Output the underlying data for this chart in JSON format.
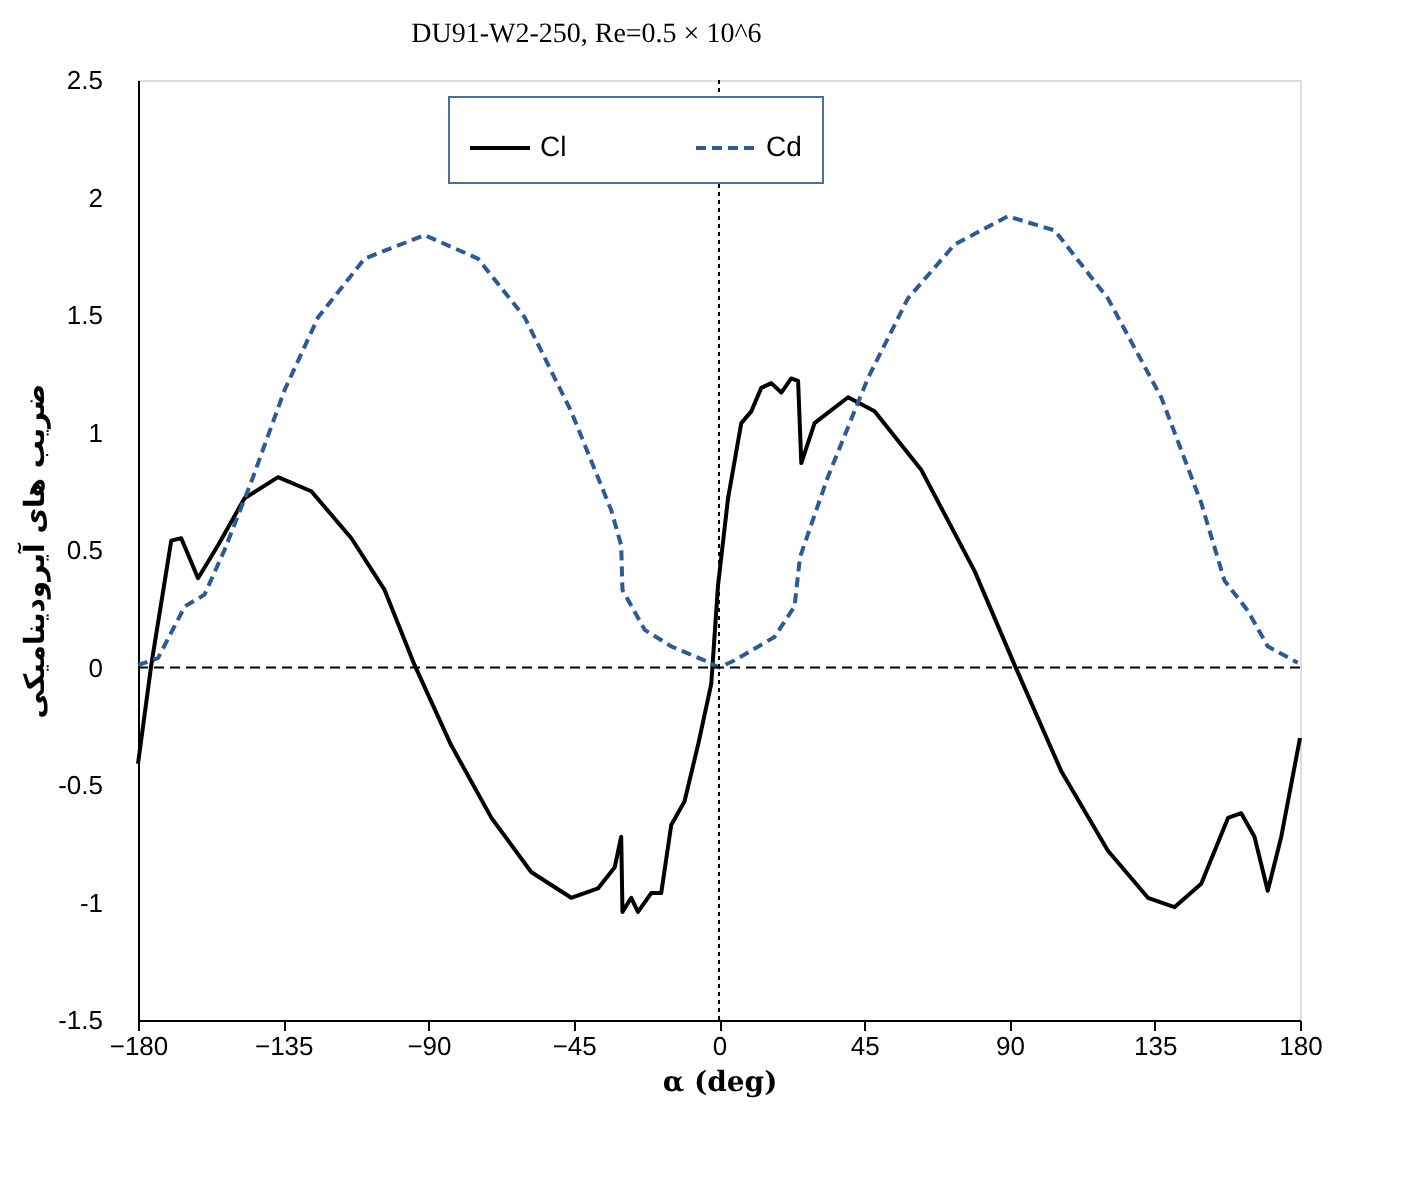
{
  "chart_data": {
    "type": "line",
    "title": "DU91-W2-250, Re=0.5 × 10^6",
    "xlabel": "α (deg)",
    "ylabel": "ضریب های آیرودینامیکی",
    "xlim": [
      -180,
      180
    ],
    "xticks": [
      -180,
      -135,
      -90,
      -45,
      0,
      45,
      90,
      135,
      180
    ],
    "ylim": [
      -1.5,
      2.5
    ],
    "yticks": [
      -1.5,
      -1,
      -0.5,
      0,
      0.5,
      1,
      1.5,
      2,
      2.5
    ],
    "grid": false,
    "legend": "top",
    "marker": "none",
    "series": [
      {
        "name": "Cl",
        "color": "#000000",
        "line_style": "solid",
        "x": [
          -180,
          -175.9,
          -169.7,
          -166.6,
          -161.4,
          -155.2,
          -147,
          -136.6,
          -126.3,
          -113.9,
          -103.6,
          -94.3,
          -83,
          -70.5,
          -58.2,
          -45.8,
          -37.5,
          -32.3,
          -30.3,
          -29.9,
          -27.2,
          -25.1,
          -21,
          -17.9,
          -14.8,
          -10.7,
          -6.5,
          -2.4,
          -0.3,
          2.8,
          6.9,
          10,
          13.1,
          16.2,
          19.3,
          22.4,
          24.5,
          25.5,
          29.6,
          40,
          48.2,
          62.7,
          79.2,
          91.6,
          106,
          120.5,
          132.9,
          141.1,
          149.4,
          157.7,
          161.8,
          165.9,
          170,
          174.2,
          180
        ],
        "values": [
          -0.41,
          0.01,
          0.54,
          0.55,
          0.38,
          0.52,
          0.72,
          0.81,
          0.75,
          0.55,
          0.33,
          0.01,
          -0.33,
          -0.64,
          -0.87,
          -0.98,
          -0.94,
          -0.85,
          -0.72,
          -1.04,
          -0.98,
          -1.04,
          -0.96,
          -0.96,
          -0.67,
          -0.57,
          -0.33,
          -0.07,
          0.35,
          0.72,
          1.04,
          1.09,
          1.19,
          1.21,
          1.17,
          1.23,
          1.22,
          0.87,
          1.04,
          1.15,
          1.09,
          0.84,
          0.41,
          0.01,
          -0.44,
          -0.78,
          -0.98,
          -1.02,
          -0.92,
          -0.64,
          -0.62,
          -0.72,
          -0.95,
          -0.72,
          -0.3
        ]
      },
      {
        "name": "Cd",
        "color": "#2e5a94",
        "line_style": "dashed",
        "x": [
          -180,
          -173.8,
          -165.5,
          -159.4,
          -153.2,
          -144.9,
          -134.6,
          -124.2,
          -109.8,
          -91.2,
          -74.7,
          -60.2,
          -45.8,
          -33.4,
          -30.3,
          -29.9,
          -23,
          -14.8,
          -4.5,
          0,
          4.8,
          17.2,
          23.4,
          25.1,
          33.7,
          46.1,
          58.5,
          73,
          89.5,
          104,
          120.5,
          137,
          149.4,
          156.6,
          163.9,
          170,
          179.3
        ],
        "values": [
          0.01,
          0.04,
          0.26,
          0.31,
          0.5,
          0.79,
          1.18,
          1.49,
          1.74,
          1.84,
          1.74,
          1.49,
          1.09,
          0.67,
          0.52,
          0.33,
          0.16,
          0.09,
          0.03,
          0,
          0.03,
          0.13,
          0.26,
          0.47,
          0.81,
          1.23,
          1.57,
          1.8,
          1.92,
          1.86,
          1.57,
          1.15,
          0.7,
          0.37,
          0.24,
          0.09,
          0.02
        ]
      }
    ],
    "ref_lines": [
      {
        "axis": "y",
        "value": 0,
        "label": null,
        "color": "#000000",
        "line_style": "dashed"
      },
      {
        "axis": "x",
        "value": 0,
        "label": null,
        "color": "#000000",
        "line_style": "dotted"
      }
    ]
  }
}
